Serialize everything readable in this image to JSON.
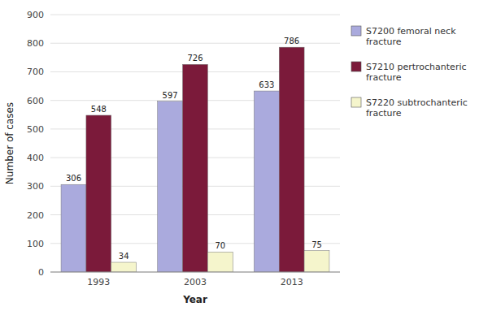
{
  "chart_data": {
    "type": "bar",
    "categories": [
      "1993",
      "2003",
      "2013"
    ],
    "series": [
      {
        "name": "S7200 femoral neck\nfracture",
        "color": "#aaaadd",
        "values": [
          306,
          597,
          633
        ]
      },
      {
        "name": "S7210 pertrochanteric\nfracture",
        "color": "#7b1a3a",
        "values": [
          548,
          726,
          786
        ]
      },
      {
        "name": "S7220 subtrochanteric\nfracture",
        "color": "#f5f5cc",
        "values": [
          34,
          70,
          75
        ]
      }
    ],
    "x_label": "Year",
    "y_label": "Number of cases",
    "ylim": [
      0,
      900
    ],
    "yticks": [
      0,
      100,
      200,
      300,
      400,
      500,
      600,
      700,
      800,
      900
    ],
    "grid": true,
    "legend": "right",
    "data_labels": true
  }
}
